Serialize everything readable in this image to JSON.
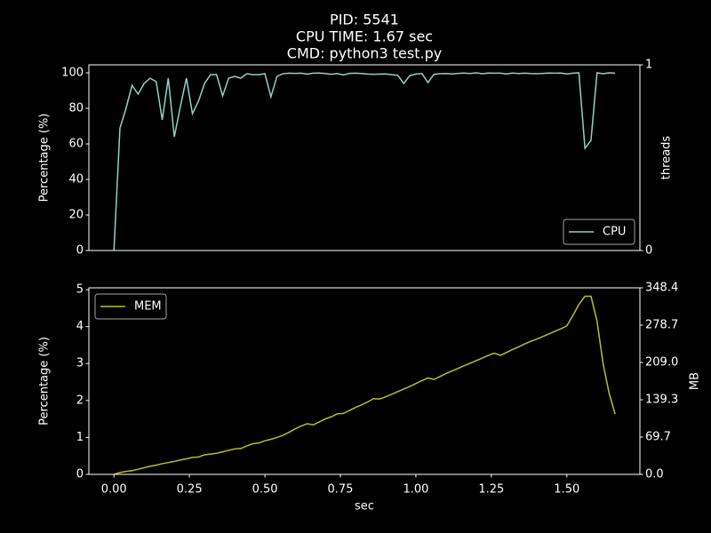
{
  "chart_data": [
    {
      "type": "line",
      "title": [
        "PID: 5541",
        "CPU TIME: 1.67 sec",
        "CMD: python3 test.py"
      ],
      "ylabel": "Percentage (%)",
      "y2label": "threads",
      "x": [
        0,
        0.02,
        0.04,
        0.06,
        0.08,
        0.1,
        0.12,
        0.14,
        0.16,
        0.18,
        0.2,
        0.22,
        0.24,
        0.26,
        0.28,
        0.3,
        0.32,
        0.34,
        0.36,
        0.38,
        0.4,
        0.42,
        0.44,
        0.46,
        0.48,
        0.5,
        0.52,
        0.54,
        0.56,
        0.58,
        0.6,
        0.62,
        0.64,
        0.66,
        0.68,
        0.7,
        0.72,
        0.74,
        0.76,
        0.78,
        0.8,
        0.82,
        0.84,
        0.86,
        0.88,
        0.9,
        0.92,
        0.94,
        0.96,
        0.98,
        1,
        1.02,
        1.04,
        1.06,
        1.08,
        1.1,
        1.12,
        1.14,
        1.16,
        1.18,
        1.2,
        1.22,
        1.24,
        1.26,
        1.28,
        1.3,
        1.32,
        1.34,
        1.36,
        1.38,
        1.4,
        1.42,
        1.44,
        1.46,
        1.48,
        1.5,
        1.52,
        1.54,
        1.56,
        1.58,
        1.6,
        1.62,
        1.64,
        1.66
      ],
      "xlim": [
        -0.083,
        1.742
      ],
      "ylim": [
        0,
        104.5
      ],
      "yticks": [
        0,
        20,
        40,
        60,
        80,
        100
      ],
      "y2lim": [
        0,
        1
      ],
      "y2ticks": [
        0,
        1
      ],
      "legend": "lower right",
      "series": [
        {
          "name": "CPU",
          "color": "#8dd3c7",
          "values": [
            0,
            69,
            80,
            93,
            88,
            94,
            97,
            95,
            73.5,
            97,
            64,
            81,
            97,
            77,
            84,
            94,
            99,
            99,
            87,
            97,
            98,
            97,
            99.5,
            99,
            99,
            99.5,
            86.5,
            98,
            99.5,
            99.8,
            99.7,
            99.8,
            99.3,
            99.8,
            99.9,
            99.6,
            99.2,
            99.6,
            98.8,
            99.7,
            99.8,
            99.6,
            99.3,
            99.2,
            99.3,
            99.4,
            99,
            98.6,
            94,
            98.5,
            99.3,
            99.6,
            94.5,
            99.2,
            99.5,
            99.6,
            99.4,
            99.7,
            99.9,
            99.6,
            100,
            99.5,
            99.9,
            99.8,
            99.8,
            99.4,
            99.9,
            99.6,
            99.8,
            99.6,
            99.5,
            99.7,
            99.9,
            99.8,
            99.9,
            99.4,
            99.8,
            100,
            57.5,
            62,
            100,
            99.5,
            100,
            99.8
          ]
        }
      ]
    },
    {
      "type": "line",
      "ylabel": "Percentage (%)",
      "y2label": "MB",
      "xlabel": "sec",
      "x": [
        0,
        0.02,
        0.04,
        0.06,
        0.08,
        0.1,
        0.12,
        0.14,
        0.16,
        0.18,
        0.2,
        0.22,
        0.24,
        0.26,
        0.28,
        0.3,
        0.32,
        0.34,
        0.36,
        0.38,
        0.4,
        0.42,
        0.44,
        0.46,
        0.48,
        0.5,
        0.52,
        0.54,
        0.56,
        0.58,
        0.6,
        0.62,
        0.64,
        0.66,
        0.68,
        0.7,
        0.72,
        0.74,
        0.76,
        0.78,
        0.8,
        0.82,
        0.84,
        0.86,
        0.88,
        0.9,
        0.92,
        0.94,
        0.96,
        0.98,
        1,
        1.02,
        1.04,
        1.06,
        1.08,
        1.1,
        1.12,
        1.14,
        1.16,
        1.18,
        1.2,
        1.22,
        1.24,
        1.26,
        1.28,
        1.3,
        1.32,
        1.34,
        1.36,
        1.38,
        1.4,
        1.42,
        1.44,
        1.46,
        1.48,
        1.5,
        1.52,
        1.54,
        1.56,
        1.58,
        1.6,
        1.62,
        1.64,
        1.66
      ],
      "xlim": [
        -0.083,
        1.742
      ],
      "xticks": [
        {
          "value": 0,
          "label": "0.00"
        },
        {
          "value": 0.25,
          "label": "0.25"
        },
        {
          "value": 0.5,
          "label": "0.50"
        },
        {
          "value": 0.75,
          "label": "0.75"
        },
        {
          "value": 1,
          "label": "1.00"
        },
        {
          "value": 1.25,
          "label": "1.25"
        },
        {
          "value": 1.5,
          "label": "1.50"
        }
      ],
      "ylim": [
        0,
        5.05
      ],
      "yticks": [
        0,
        1,
        2,
        3,
        4,
        5
      ],
      "y2lim": [
        0,
        348.4
      ],
      "y2ticks": [
        {
          "value": 0,
          "label": "0.0"
        },
        69.7,
        139.3,
        {
          "value": 209,
          "label": "209.0"
        },
        278.7,
        348.4
      ],
      "legend": "upper left",
      "series": [
        {
          "name": "MEM",
          "color": "#bcbd22",
          "values": [
            0,
            0.05,
            0.08,
            0.1,
            0.14,
            0.18,
            0.22,
            0.25,
            0.29,
            0.32,
            0.35,
            0.39,
            0.42,
            0.46,
            0.47,
            0.53,
            0.55,
            0.57,
            0.61,
            0.65,
            0.69,
            0.7,
            0.77,
            0.83,
            0.85,
            0.91,
            0.95,
            1.0,
            1.06,
            1.14,
            1.23,
            1.31,
            1.37,
            1.34,
            1.42,
            1.5,
            1.56,
            1.64,
            1.65,
            1.73,
            1.81,
            1.88,
            1.96,
            2.05,
            2.04,
            2.1,
            2.17,
            2.24,
            2.31,
            2.38,
            2.46,
            2.54,
            2.61,
            2.57,
            2.65,
            2.73,
            2.8,
            2.87,
            2.94,
            3.01,
            3.08,
            3.15,
            3.22,
            3.28,
            3.22,
            3.3,
            3.38,
            3.45,
            3.53,
            3.6,
            3.66,
            3.73,
            3.8,
            3.87,
            3.94,
            4.02,
            4.3,
            4.6,
            4.82,
            4.82,
            4.15,
            3.0,
            2.2,
            1.63
          ]
        }
      ]
    }
  ]
}
